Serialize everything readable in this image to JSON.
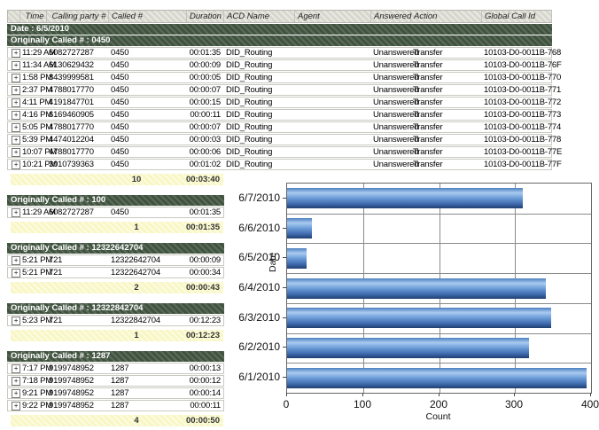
{
  "report": {
    "columns": [
      "",
      "Time",
      "Calling party #",
      "Called #",
      "Duration",
      "ACD Name",
      "Agent",
      "Answered",
      "Action",
      "Global Call Id"
    ],
    "sections": [
      {
        "date_header": "Date : 6/5/2010",
        "group_header": "Originally Called # : 0450",
        "full_width": true,
        "rows": [
          {
            "time": "11:29 AM",
            "calling": "6082727287",
            "called": "0450",
            "duration": "00:01:35",
            "acd": "DID_Routing",
            "agent": "",
            "answered": "Unanswered",
            "action": "Transfer",
            "global_id": "10103-D0-0011B-768"
          },
          {
            "time": "11:34 AM",
            "calling": "6130629432",
            "called": "0450",
            "duration": "00:00:09",
            "acd": "DID_Routing",
            "agent": "",
            "answered": "Unanswered",
            "action": "Transfer",
            "global_id": "10103-D0-0011B-76F"
          },
          {
            "time": "1:58 PM",
            "calling": "8439999581",
            "called": "0450",
            "duration": "00:00:05",
            "acd": "DID_Routing",
            "agent": "",
            "answered": "Unanswered",
            "action": "Transfer",
            "global_id": "10103-D0-0011B-770"
          },
          {
            "time": "2:37 PM",
            "calling": "4788017770",
            "called": "0450",
            "duration": "00:00:07",
            "acd": "DID_Routing",
            "agent": "",
            "answered": "Unanswered",
            "action": "Transfer",
            "global_id": "10103-D0-0011B-771"
          },
          {
            "time": "4:11 PM",
            "calling": "4191847701",
            "called": "0450",
            "duration": "00:00:15",
            "acd": "DID_Routing",
            "agent": "",
            "answered": "Unanswered",
            "action": "Transfer",
            "global_id": "10103-D0-0011B-772"
          },
          {
            "time": "4:16 PM",
            "calling": "6169460905",
            "called": "0450",
            "duration": "00:00:11",
            "acd": "DID_Routing",
            "agent": "",
            "answered": "Unanswered",
            "action": "Transfer",
            "global_id": "10103-D0-0011B-773"
          },
          {
            "time": "5:05 PM",
            "calling": "4788017770",
            "called": "0450",
            "duration": "00:00:07",
            "acd": "DID_Routing",
            "agent": "",
            "answered": "Unanswered",
            "action": "Transfer",
            "global_id": "10103-D0-0011B-774"
          },
          {
            "time": "5:39 PM",
            "calling": "4474012204",
            "called": "0450",
            "duration": "00:00:03",
            "acd": "DID_Routing",
            "agent": "",
            "answered": "Unanswered",
            "action": "Transfer",
            "global_id": "10103-D0-0011B-778"
          },
          {
            "time": "10:07 PM",
            "calling": "4788017770",
            "called": "0450",
            "duration": "00:00:06",
            "acd": "DID_Routing",
            "agent": "",
            "answered": "Unanswered",
            "action": "Transfer",
            "global_id": "10103-D0-0011B-77E"
          },
          {
            "time": "10:21 PM",
            "calling": "3010739363",
            "called": "0450",
            "duration": "00:01:02",
            "acd": "DID_Routing",
            "agent": "",
            "answered": "Unanswered",
            "action": "Transfer",
            "global_id": "10103-D0-0011B-77F"
          }
        ],
        "summary": {
          "count": "10",
          "total_duration": "00:03:40"
        }
      },
      {
        "group_header": "Originally Called # : 100",
        "full_width": false,
        "rows": [
          {
            "time": "11:29 AM",
            "calling": "6082727287",
            "called": "0450",
            "duration": "00:01:35"
          }
        ],
        "summary": {
          "count": "1",
          "total_duration": "00:01:35"
        }
      },
      {
        "group_header": "Originally Called # : 12322642704",
        "full_width": false,
        "rows": [
          {
            "time": "5:21 PM",
            "calling": "721",
            "called": "12322642704",
            "duration": "00:00:09"
          },
          {
            "time": "5:21 PM",
            "calling": "721",
            "called": "12322642704",
            "duration": "00:00:34"
          }
        ],
        "summary": {
          "count": "2",
          "total_duration": "00:00:43"
        }
      },
      {
        "group_header": "Originally Called # : 12322842704",
        "full_width": false,
        "rows": [
          {
            "time": "5:23 PM",
            "calling": "721",
            "called": "12322842704",
            "duration": "00:12:23"
          }
        ],
        "summary": {
          "count": "1",
          "total_duration": "00:12:23"
        }
      },
      {
        "group_header": "Originally Called # : 1287",
        "full_width": false,
        "rows": [
          {
            "time": "7:17 PM",
            "calling": "9199748952",
            "called": "1287",
            "duration": "00:00:13"
          },
          {
            "time": "7:18 PM",
            "calling": "9199748952",
            "called": "1287",
            "duration": "00:00:12"
          },
          {
            "time": "9:21 PM",
            "calling": "9199748952",
            "called": "1287",
            "duration": "00:00:14"
          },
          {
            "time": "9:22 PM",
            "calling": "9199748952",
            "called": "1287",
            "duration": "00:00:11"
          }
        ],
        "summary": {
          "count": "4",
          "total_duration": "00:00:50"
        }
      }
    ]
  },
  "chart_data": {
    "type": "bar",
    "orientation": "horizontal",
    "categories": [
      "6/7/2010",
      "6/6/2010",
      "6/5/2010",
      "6/4/2010",
      "6/3/2010",
      "6/2/2010",
      "6/1/2010"
    ],
    "values": [
      310,
      33,
      26,
      341,
      348,
      318,
      394
    ],
    "title": "",
    "xlabel": "Count",
    "ylabel": "Date",
    "xlim": [
      0,
      400
    ],
    "xticks": [
      0,
      100,
      200,
      300,
      400
    ],
    "grid": true,
    "legend": false
  },
  "colors": {
    "group_band_green": "#40533f",
    "summary_yellow": "#f8f7c4",
    "header_gray": "#d7d7cd",
    "grid_gray": "#8a8a8a",
    "bar_top": "#4d7fc0",
    "bar_light": "#a9cbf0",
    "bar_mid": "#6f9fda",
    "bar_dark": "#1f3f70"
  }
}
